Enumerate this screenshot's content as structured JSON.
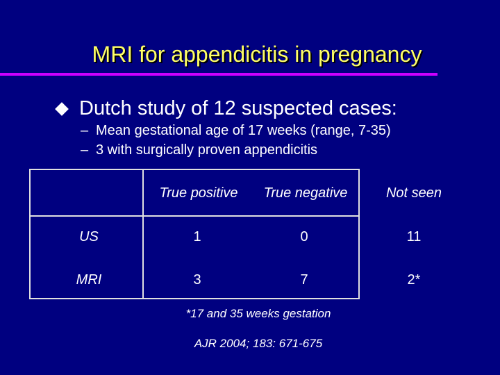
{
  "slide": {
    "title": "MRI for appendicitis in pregnancy",
    "bullet": "Dutch study of 12 suspected cases:",
    "subbullets": [
      "Mean gestational age of 17 weeks  (range, 7-35)",
      "3 with surgically proven appendicitis"
    ],
    "dash": "–"
  },
  "table": {
    "headers": [
      "True positive",
      "True negative",
      "Not seen"
    ],
    "rows": [
      {
        "label": "US",
        "values": [
          "1",
          "0",
          "11"
        ]
      },
      {
        "label": "MRI",
        "values": [
          "3",
          "7",
          "2*"
        ]
      }
    ]
  },
  "footnote": "*17 and 35 weeks gestation",
  "citation": "AJR 2004; 183: 671-675",
  "colors": {
    "background": "#000080",
    "title": "#ffff66",
    "rule": "#cc00ff",
    "text": "#ffffff"
  },
  "icons": {
    "bullet": "diamond-bullet-icon"
  }
}
